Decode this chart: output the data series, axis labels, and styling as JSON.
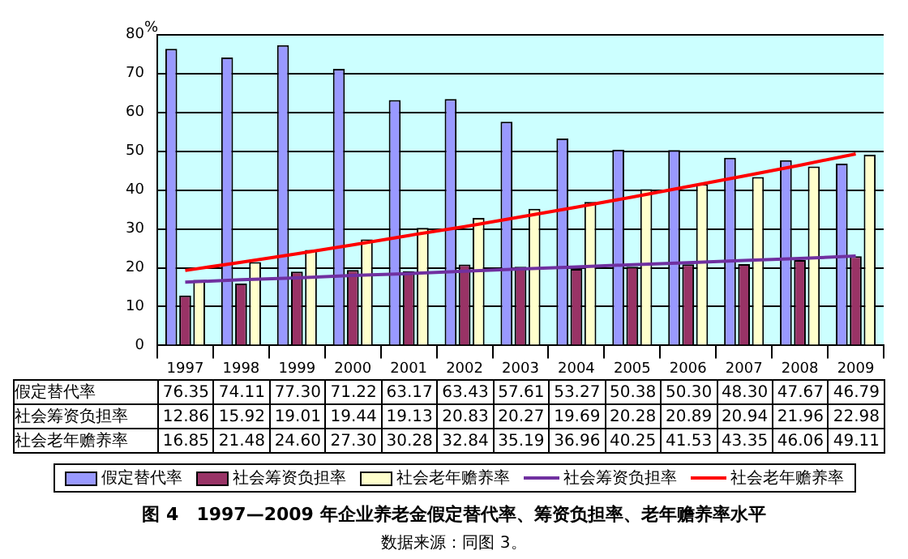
{
  "chart_data": {
    "type": "bar",
    "title": "图 4　1997—2009 年企业养老金假定替代率、筹资负担率、老年赡养率水平",
    "ylabel": "%",
    "annotations": [
      "数据来源：同图 3。"
    ],
    "categories": [
      "1997",
      "1998",
      "1999",
      "2000",
      "2001",
      "2002",
      "2003",
      "2004",
      "2005",
      "2006",
      "2007",
      "2008",
      "2009"
    ],
    "series": [
      {
        "name": "假定替代率",
        "color": "#9999ff",
        "values": [
          76.35,
          74.11,
          77.3,
          71.22,
          63.17,
          63.43,
          57.61,
          53.27,
          50.38,
          50.3,
          48.3,
          47.67,
          46.79
        ],
        "value_labels": [
          "76.35",
          "74.11",
          "77.30",
          "71.22",
          "63.17",
          "63.43",
          "57.61",
          "53.27",
          "50.38",
          "50.30",
          "48.30",
          "47.67",
          "46.79"
        ]
      },
      {
        "name": "社会筹资负担率",
        "color": "#993366",
        "values": [
          12.86,
          15.92,
          19.01,
          19.44,
          19.13,
          20.83,
          20.27,
          19.69,
          20.28,
          20.89,
          20.94,
          21.96,
          22.98
        ],
        "value_labels": [
          "12.86",
          "15.92",
          "19.01",
          "19.44",
          "19.13",
          "20.83",
          "20.27",
          "19.69",
          "20.28",
          "20.89",
          "20.94",
          "21.96",
          "22.98"
        ]
      },
      {
        "name": "社会老年赡养率",
        "color": "#ffffcc",
        "values": [
          16.85,
          21.48,
          24.6,
          27.3,
          30.28,
          32.84,
          35.19,
          36.96,
          40.25,
          41.53,
          43.35,
          46.06,
          49.11
        ],
        "value_labels": [
          "16.85",
          "21.48",
          "24.60",
          "27.30",
          "30.28",
          "32.84",
          "35.19",
          "36.96",
          "40.25",
          "41.53",
          "43.35",
          "46.06",
          "49.11"
        ]
      },
      {
        "name": "社会筹资负担率",
        "type": "line",
        "color": "#7030a0",
        "values": [
          16.3,
          16.9,
          17.4,
          18.0,
          18.5,
          19.1,
          19.7,
          20.2,
          20.8,
          21.3,
          21.9,
          22.4,
          23.0
        ]
      },
      {
        "name": "社会老年赡养率",
        "type": "line",
        "color": "#ff0000",
        "values": [
          19.3,
          21.4,
          23.6,
          25.9,
          28.3,
          30.6,
          33.1,
          35.6,
          38.2,
          40.9,
          43.6,
          46.4,
          49.3
        ]
      }
    ],
    "ylim": [
      0,
      80
    ],
    "yticks": [
      0,
      10,
      20,
      30,
      40,
      50,
      60,
      70,
      80
    ],
    "grid": "y",
    "legend": "bottom",
    "marker": "none",
    "line_style": "solid"
  }
}
